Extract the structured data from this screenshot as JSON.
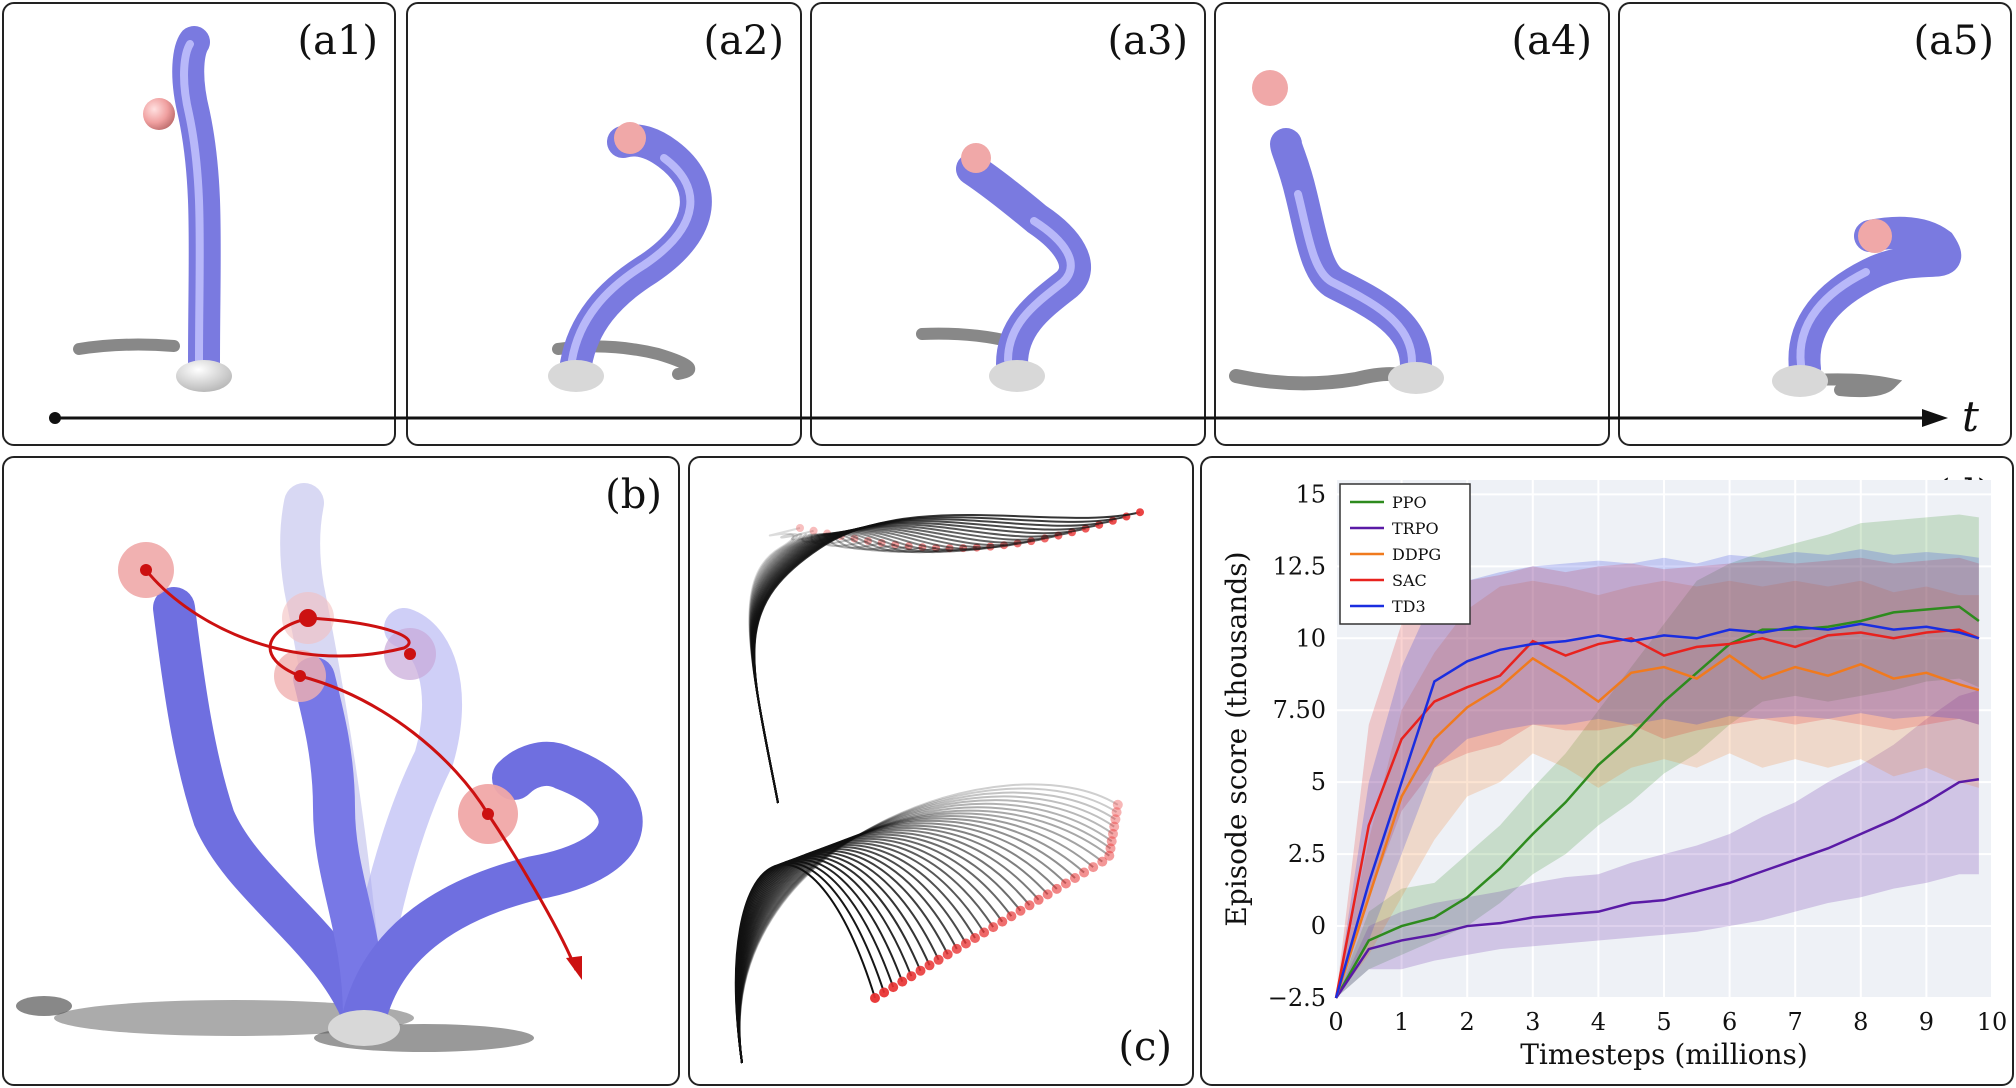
{
  "figure": {
    "panels_a": [
      {
        "label": "(a1)"
      },
      {
        "label": "(a2)"
      },
      {
        "label": "(a3)"
      },
      {
        "label": "(a4)"
      },
      {
        "label": "(a5)"
      }
    ],
    "time_axis_label": "t",
    "panel_b": {
      "label": "(b)"
    },
    "panel_c": {
      "label": "(c)"
    },
    "panel_d": {
      "label": "(d)"
    }
  },
  "colors": {
    "rod": "#8f8ff0",
    "sphere": "#f0a8a8",
    "trajectory": "#cc1111",
    "PPO": "#2e8b1e",
    "TRPO": "#5a1aa6",
    "DDPG": "#f07a1e",
    "SAC": "#e8221e",
    "TD3": "#1a2ee0"
  },
  "chart_data": {
    "type": "line",
    "xlabel": "Timesteps (millions)",
    "ylabel": "Episode score (thousands)",
    "xlim": [
      0,
      10
    ],
    "ylim": [
      -2.5,
      15.5
    ],
    "xticks": [
      0,
      1,
      2,
      3,
      4,
      5,
      6,
      7,
      8,
      9,
      10
    ],
    "xtick_labels": [
      "0",
      "1",
      "2",
      "3",
      "4",
      "5",
      "6",
      "7",
      "8",
      "9",
      "10"
    ],
    "yticks": [
      -2.5,
      0,
      2.5,
      5,
      7.5,
      10,
      12.5,
      15
    ],
    "ytick_labels": [
      "−2.5",
      "0",
      "2.5",
      "5",
      "7.50",
      "10",
      "12.5",
      "15"
    ],
    "grid": true,
    "legend_position": "top-left",
    "x": [
      0,
      0.5,
      1,
      1.5,
      2,
      2.5,
      3,
      3.5,
      4,
      4.5,
      5,
      5.5,
      6,
      6.5,
      7,
      7.5,
      8,
      8.5,
      9,
      9.5,
      9.8
    ],
    "series": [
      {
        "name": "PPO",
        "values": [
          -2.5,
          -0.5,
          0,
          0.3,
          1.0,
          2.0,
          3.2,
          4.3,
          5.6,
          6.6,
          7.8,
          8.8,
          9.8,
          10.3,
          10.3,
          10.4,
          10.6,
          10.9,
          11.0,
          11.1,
          10.6
        ],
        "band_low": [
          -2.5,
          -1.5,
          -1.0,
          -0.5,
          0.0,
          0.8,
          1.8,
          2.5,
          3.5,
          4.3,
          5.3,
          6.0,
          7.0,
          7.8,
          8.0,
          7.8,
          8.0,
          8.2,
          8.5,
          8.6,
          8.3
        ],
        "band_high": [
          -2.5,
          0.5,
          1.3,
          1.5,
          2.5,
          3.5,
          4.8,
          6.0,
          7.5,
          9.0,
          10.5,
          12.0,
          12.6,
          13.0,
          13.3,
          13.6,
          14.0,
          14.1,
          14.2,
          14.3,
          14.2
        ]
      },
      {
        "name": "TRPO",
        "values": [
          -2.5,
          -0.8,
          -0.5,
          -0.3,
          0.0,
          0.1,
          0.3,
          0.4,
          0.5,
          0.8,
          0.9,
          1.2,
          1.5,
          1.9,
          2.3,
          2.7,
          3.2,
          3.7,
          4.3,
          5.0,
          5.1
        ],
        "band_low": [
          -2.5,
          -1.5,
          -1.5,
          -1.2,
          -1.0,
          -0.8,
          -0.7,
          -0.6,
          -0.5,
          -0.4,
          -0.3,
          -0.2,
          0.0,
          0.2,
          0.5,
          0.8,
          1.0,
          1.3,
          1.5,
          1.8,
          1.8
        ],
        "band_high": [
          -2.5,
          0.0,
          0.5,
          0.8,
          1.0,
          1.2,
          1.5,
          1.7,
          1.8,
          2.2,
          2.5,
          2.8,
          3.2,
          3.8,
          4.3,
          5.0,
          5.6,
          6.3,
          7.2,
          8.0,
          8.2
        ]
      },
      {
        "name": "DDPG",
        "values": [
          -2.5,
          1.0,
          4.5,
          6.5,
          7.6,
          8.3,
          9.3,
          8.6,
          7.8,
          8.8,
          9.0,
          8.6,
          9.4,
          8.6,
          9.0,
          8.7,
          9.1,
          8.6,
          8.8,
          8.4,
          8.2
        ],
        "band_low": [
          -2.5,
          -1.0,
          1.0,
          3.0,
          4.5,
          5.0,
          6.0,
          5.5,
          4.8,
          5.5,
          5.8,
          5.5,
          6.0,
          5.5,
          5.8,
          5.5,
          5.8,
          5.2,
          5.5,
          5.0,
          4.8
        ],
        "band_high": [
          -2.5,
          3.0,
          7.5,
          9.5,
          11.0,
          11.8,
          12.0,
          11.8,
          11.5,
          11.8,
          12.0,
          11.8,
          12.0,
          11.8,
          12.0,
          11.8,
          12.0,
          11.6,
          11.8,
          11.5,
          11.5
        ]
      },
      {
        "name": "SAC",
        "values": [
          -2.5,
          3.5,
          6.5,
          7.8,
          8.3,
          8.7,
          9.9,
          9.4,
          9.8,
          10.0,
          9.4,
          9.7,
          9.8,
          10.0,
          9.7,
          10.1,
          10.2,
          10.0,
          10.2,
          10.3,
          10.0
        ],
        "band_low": [
          -2.5,
          1.0,
          4.0,
          5.5,
          6.0,
          6.3,
          7.0,
          6.8,
          6.8,
          7.0,
          6.5,
          6.8,
          7.0,
          7.2,
          7.0,
          7.2,
          7.0,
          6.8,
          7.0,
          7.2,
          7.0
        ],
        "band_high": [
          -2.5,
          7.0,
          10.5,
          11.8,
          12.0,
          12.2,
          12.5,
          12.3,
          12.5,
          12.6,
          12.4,
          12.5,
          12.6,
          12.7,
          12.6,
          12.7,
          12.8,
          12.6,
          12.7,
          12.8,
          12.6
        ]
      },
      {
        "name": "TD3",
        "values": [
          -2.5,
          1.5,
          5.0,
          8.5,
          9.2,
          9.6,
          9.8,
          9.9,
          10.1,
          9.9,
          10.1,
          10.0,
          10.3,
          10.2,
          10.4,
          10.3,
          10.5,
          10.3,
          10.4,
          10.2,
          10.0
        ],
        "band_low": [
          -2.5,
          -0.5,
          2.5,
          5.5,
          6.5,
          6.8,
          7.0,
          7.0,
          7.2,
          7.0,
          7.2,
          7.0,
          7.3,
          7.2,
          7.3,
          7.2,
          7.4,
          7.2,
          7.3,
          7.2,
          7.0
        ],
        "band_high": [
          -2.5,
          5.0,
          9.0,
          11.5,
          12.0,
          12.3,
          12.5,
          12.6,
          12.7,
          12.6,
          12.8,
          12.6,
          12.9,
          12.8,
          13.0,
          12.9,
          13.1,
          12.9,
          13.0,
          12.9,
          12.8
        ]
      }
    ]
  }
}
